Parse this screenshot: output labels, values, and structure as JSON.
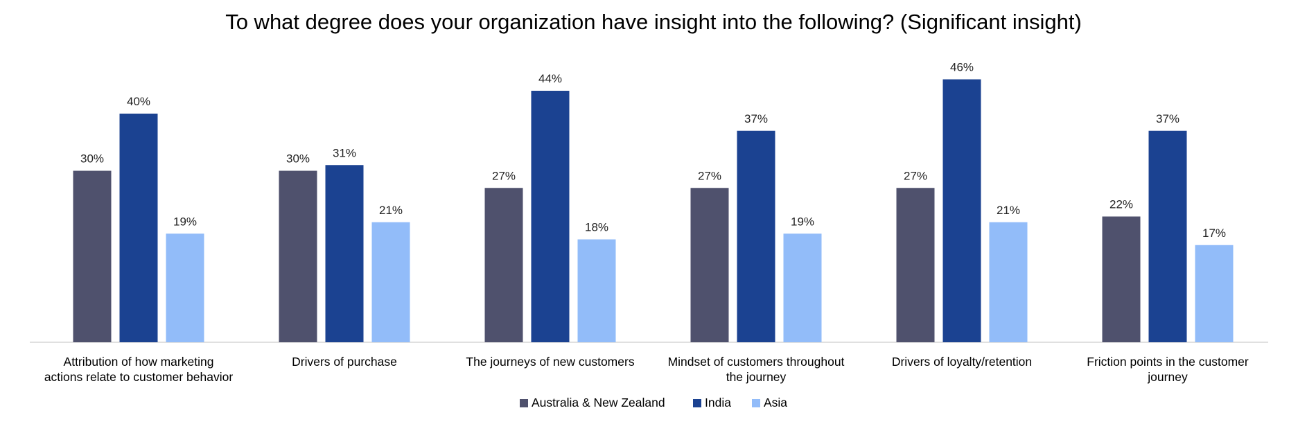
{
  "chart_data": {
    "type": "bar",
    "title": "To what degree does your organization have insight into the following? (Significant insight)",
    "xlabel": "",
    "ylabel": "",
    "ylim": [
      0,
      50
    ],
    "grid": false,
    "legend_position": "bottom",
    "value_suffix": "%",
    "categories": [
      [
        "Attribution of how marketing",
        "actions relate to customer behavior"
      ],
      [
        "Drivers of purchase"
      ],
      [
        "The journeys of new customers"
      ],
      [
        "Mindset of customers throughout",
        "the journey"
      ],
      [
        "Drivers of loyalty/retention"
      ],
      [
        "Friction points in the customer",
        "journey"
      ]
    ],
    "series": [
      {
        "name": "Australia & New Zealand",
        "color": "#4f516d",
        "values": [
          30,
          30,
          27,
          27,
          27,
          22
        ]
      },
      {
        "name": "India",
        "color": "#1b4291",
        "values": [
          40,
          31,
          44,
          37,
          46,
          37
        ]
      },
      {
        "name": "Asia",
        "color": "#92bcf9",
        "values": [
          19,
          21,
          18,
          19,
          21,
          17
        ]
      }
    ]
  }
}
